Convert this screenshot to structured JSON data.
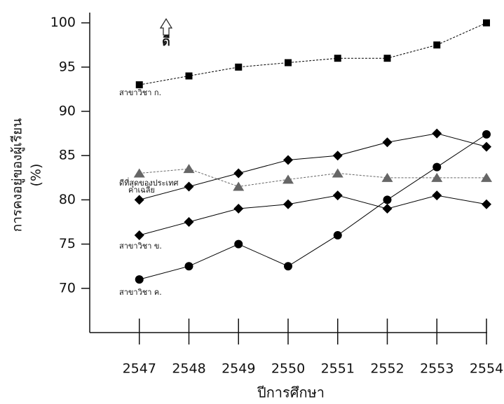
{
  "chart_data": {
    "type": "line",
    "y_label": [
      "การคงอยู่ของผู้เรียน",
      "(%)"
    ],
    "x_label": "ปีการศึกษา",
    "annotation": "ดี",
    "x": [
      2547,
      2548,
      2549,
      2550,
      2551,
      2552,
      2553,
      2554
    ],
    "xlim": [
      2546,
      2554
    ],
    "xticks": [
      2547,
      2548,
      2549,
      2550,
      2551,
      2552,
      2553,
      2554
    ],
    "ylim": [
      65,
      101
    ],
    "yticks": [
      70,
      75,
      80,
      85,
      90,
      95,
      100
    ],
    "grid": false,
    "series": [
      {
        "name": "สาขาวิชา ก.",
        "color": "#000000",
        "marker": "square",
        "dash": true,
        "values": [
          93,
          94,
          95,
          95.5,
          96,
          96,
          97.5,
          100
        ]
      },
      {
        "name": "ดีที่สุดของประเทศ",
        "color": "#666666",
        "marker": "triangle",
        "dash": true,
        "values": [
          83,
          83.5,
          81.5,
          82.3,
          83,
          82.5,
          82.5,
          82.5
        ]
      },
      {
        "name": "ค่าเฉลี่ย",
        "color": "#000000",
        "marker": "diamond",
        "dash": false,
        "values": [
          80,
          81.5,
          83,
          84.5,
          85,
          86.5,
          87.5,
          86
        ]
      },
      {
        "name": "สาขาวิชา ข.",
        "color": "#000000",
        "marker": "diamond",
        "dash": false,
        "values": [
          76,
          77.5,
          79,
          79.5,
          80.5,
          79,
          80.5,
          79.5
        ]
      },
      {
        "name": "สาขาวิชา ค.",
        "color": "#000000",
        "marker": "circle",
        "dash": false,
        "values": [
          71,
          72.5,
          75,
          72.5,
          76,
          80,
          83.7,
          87.4
        ]
      }
    ]
  }
}
